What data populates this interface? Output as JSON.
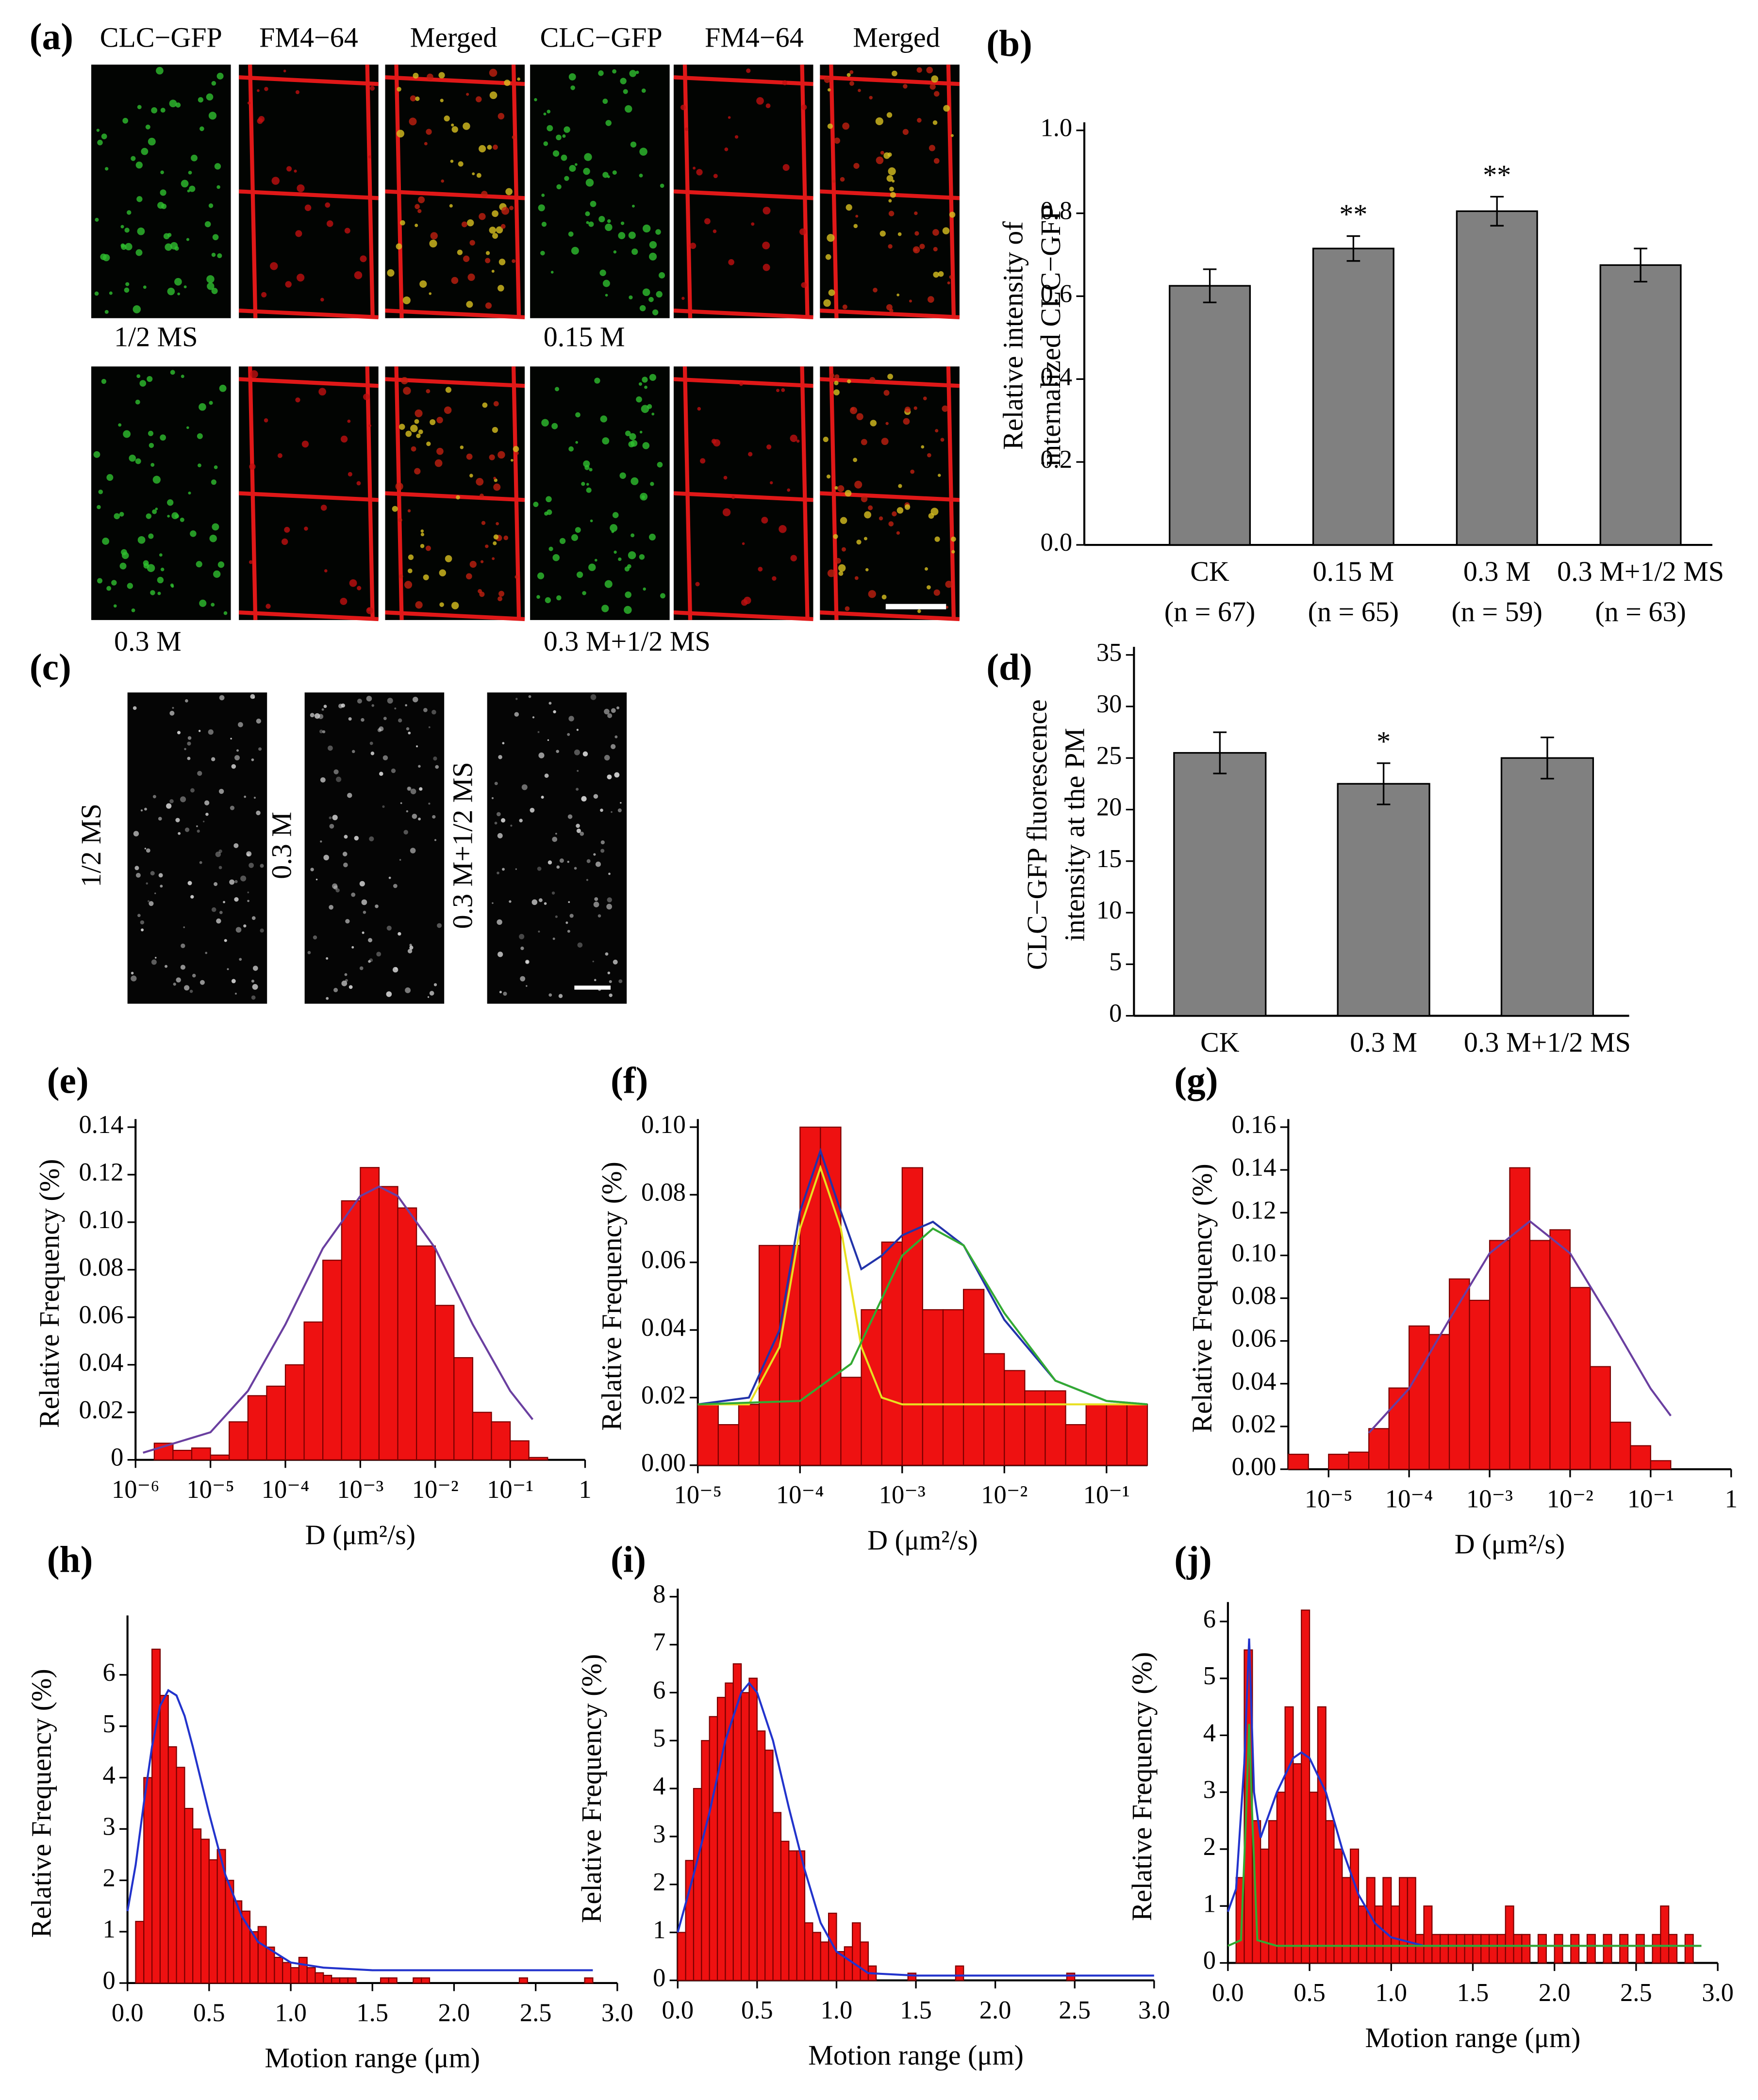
{
  "images": {
    "a": {
      "label": "(a)",
      "headers": [
        "CLC−GFP",
        "FM4−64",
        "Merged",
        "CLC−GFP",
        "FM4−64",
        "Merged"
      ],
      "captions": [
        "1/2 MS",
        "0.15 M",
        "0.3 M",
        "0.3 M+1/2 MS"
      ]
    },
    "c": {
      "label": "(c)",
      "captions": [
        "1/2 MS",
        "0.3 M",
        "0.3 M+1/2 MS"
      ]
    }
  },
  "chart_data": [
    {
      "type": "bar",
      "label": "(b)",
      "ylabel": [
        "Relative intensity of",
        "internalized CLC−GFP"
      ],
      "categories": [
        "CK",
        "0.15 M",
        "0.3 M",
        "0.3 M+1/2 MS"
      ],
      "category_notes": [
        "(n = 67)",
        "(n = 65)",
        "(n = 59)",
        "(n = 63)"
      ],
      "values": [
        0.625,
        0.715,
        0.805,
        0.675
      ],
      "errors": [
        0.04,
        0.03,
        0.035,
        0.04
      ],
      "significance": [
        null,
        "**",
        "**",
        null
      ],
      "color": "#808080",
      "ylim": [
        0,
        1.0
      ],
      "yticks": [
        {
          "value": 0,
          "label": "0.0"
        },
        0.2,
        0.4,
        0.6,
        0.8,
        {
          "value": 1,
          "label": "1.0"
        }
      ]
    },
    {
      "type": "bar",
      "label": "(d)",
      "ylabel": [
        "CLC−GFP fluorescence",
        "intensity at the PM"
      ],
      "categories": [
        "CK",
        "0.3 M",
        "0.3 M+1/2 MS"
      ],
      "values": [
        25.5,
        22.5,
        25
      ],
      "errors": [
        2,
        2,
        2
      ],
      "significance": [
        null,
        "*",
        null
      ],
      "color": "#808080",
      "ylim": [
        0,
        35
      ],
      "yticks": [
        0,
        5,
        10,
        15,
        20,
        25,
        30,
        35
      ]
    },
    {
      "type": "histogram",
      "label": "(e)",
      "xlabel": "D (μm²/s)",
      "ylabel": "Relative Frequency (%)",
      "xscale": "log",
      "bins": [
        1.778e-06,
        3.162e-06,
        5.623e-06,
        1e-05,
        1.778e-05,
        3.162e-05,
        5.623e-05,
        0.0001,
        0.0001778,
        0.0003162,
        0.0005623,
        0.001,
        0.001778,
        0.003162,
        0.005623,
        0.01,
        0.01778,
        0.03162,
        0.05623,
        0.1,
        0.1778,
        0.3162
      ],
      "values": [
        0.007,
        0.004,
        0.005,
        0.002,
        0.016,
        0.027,
        0.031,
        0.04,
        0.058,
        0.084,
        0.109,
        0.123,
        0.115,
        0.106,
        0.09,
        0.065,
        0.043,
        0.02,
        0.016,
        0.008,
        0.001
      ],
      "color": "#ee1111",
      "edgecolor": "#7a0000",
      "fits": [
        {
          "color": "#6a3fa0",
          "x": [
            1.259e-06,
            1e-05,
            3.162e-05,
            0.0001,
            0.0003162,
            0.001,
            0.001778,
            0.003162,
            0.01,
            0.03162,
            0.1,
            0.1995
          ],
          "values": [
            0.003,
            0.0116,
            0.029,
            0.057,
            0.089,
            0.111,
            0.115,
            0.111,
            0.089,
            0.057,
            0.029,
            0.017
          ]
        }
      ],
      "xlim": [
        1e-06,
        1
      ],
      "xticks": [
        {
          "value": 1e-06,
          "label": "10⁻⁶"
        },
        {
          "value": 1e-05,
          "label": "10⁻⁵"
        },
        {
          "value": 0.0001,
          "label": "10⁻⁴"
        },
        {
          "value": 0.001,
          "label": "10⁻³"
        },
        {
          "value": 0.01,
          "label": "10⁻²"
        },
        {
          "value": 0.1,
          "label": "10⁻¹"
        },
        1
      ],
      "ylim": [
        0,
        0.14
      ],
      "yticks": [
        0,
        0.02,
        0.04,
        0.06,
        0.08,
        {
          "value": 0.1,
          "label": "0.10"
        },
        0.12,
        0.14
      ]
    },
    {
      "type": "histogram",
      "label": "(f)",
      "xlabel": "D (μm²/s)",
      "ylabel": "Relative Frequency (%)",
      "xscale": "log",
      "bins": [
        1e-05,
        1.585e-05,
        2.512e-05,
        3.981e-05,
        6.31e-05,
        0.0001,
        0.0001585,
        0.0002512,
        0.0003981,
        0.000631,
        0.001,
        0.001585,
        0.002512,
        0.003981,
        0.00631,
        0.01,
        0.01585,
        0.02512,
        0.03981,
        0.0631,
        0.1,
        0.1585,
        0.2512
      ],
      "values": [
        0.018,
        0.012,
        0.018,
        0.065,
        0.065,
        0.1,
        0.1,
        0.026,
        0.046,
        0.066,
        0.088,
        0.046,
        0.046,
        0.052,
        0.033,
        0.028,
        0.022,
        0.022,
        0.012,
        0.018,
        0.018,
        0.018
      ],
      "color": "#ee1111",
      "edgecolor": "#7a0000",
      "fits": [
        {
          "color": "#2233aa",
          "x": [
            1e-05,
            3.162e-05,
            6.31e-05,
            0.0001,
            0.0001585,
            0.0002512,
            0.0003981,
            0.000631,
            0.001,
            0.002,
            0.004,
            0.01,
            0.03162,
            0.1,
            0.2512
          ],
          "values": [
            0.018,
            0.02,
            0.04,
            0.075,
            0.093,
            0.075,
            0.058,
            0.062,
            0.068,
            0.072,
            0.065,
            0.043,
            0.025,
            0.019,
            0.018
          ]
        },
        {
          "color": "#e8e020",
          "x": [
            1e-05,
            3.162e-05,
            6.31e-05,
            0.0001,
            0.0001585,
            0.0002512,
            0.0003981,
            0.000631,
            0.001,
            0.2512
          ],
          "values": [
            0.018,
            0.018,
            0.035,
            0.07,
            0.088,
            0.07,
            0.035,
            0.02,
            0.018,
            0.018
          ]
        },
        {
          "color": "#33aa33",
          "x": [
            1e-05,
            0.0001,
            0.0003162,
            0.001,
            0.002,
            0.004,
            0.01,
            0.03162,
            0.1,
            0.2512
          ],
          "values": [
            0.018,
            0.019,
            0.03,
            0.062,
            0.07,
            0.065,
            0.045,
            0.025,
            0.019,
            0.018
          ]
        }
      ],
      "xlim": [
        1e-05,
        0.2512
      ],
      "xticks": [
        {
          "value": 1e-05,
          "label": "10⁻⁵"
        },
        {
          "value": 0.0001,
          "label": "10⁻⁴"
        },
        {
          "value": 0.001,
          "label": "10⁻³"
        },
        {
          "value": 0.01,
          "label": "10⁻²"
        },
        {
          "value": 0.1,
          "label": "10⁻¹"
        }
      ],
      "ylim": [
        0,
        0.1
      ],
      "yticks": [
        {
          "value": 0,
          "label": "0.00"
        },
        0.02,
        0.04,
        0.06,
        0.08,
        {
          "value": 0.1,
          "label": "0.10"
        }
      ]
    },
    {
      "type": "histogram",
      "label": "(g)",
      "xlabel": "D (μm²/s)",
      "ylabel": "Relative Frequency (%)",
      "xscale": "log",
      "bins": [
        3.162e-06,
        5.623e-06,
        1e-05,
        1.778e-05,
        3.162e-05,
        5.623e-05,
        0.0001,
        0.0001778,
        0.0003162,
        0.0005623,
        0.001,
        0.001778,
        0.003162,
        0.005623,
        0.01,
        0.01778,
        0.03162,
        0.05623,
        0.1,
        0.1778
      ],
      "values": [
        0.007,
        0,
        0.007,
        0.008,
        0.019,
        0.038,
        0.067,
        0.063,
        0.089,
        0.079,
        0.107,
        0.141,
        0.107,
        0.112,
        0.085,
        0.048,
        0.022,
        0.011,
        0.004
      ],
      "color": "#ee1111",
      "edgecolor": "#7a0000",
      "fits": [
        {
          "color": "#6a3fa0",
          "x": [
            3.162e-05,
            0.0001,
            0.0003162,
            0.001,
            0.003162,
            0.01,
            0.03162,
            0.1,
            0.1778
          ],
          "values": [
            0.017,
            0.0377,
            0.07,
            0.101,
            0.116,
            0.101,
            0.07,
            0.0377,
            0.025
          ]
        }
      ],
      "xlim": [
        3.162e-06,
        1
      ],
      "xticks": [
        {
          "value": 1e-05,
          "label": "10⁻⁵"
        },
        {
          "value": 0.0001,
          "label": "10⁻⁴"
        },
        {
          "value": 0.001,
          "label": "10⁻³"
        },
        {
          "value": 0.01,
          "label": "10⁻²"
        },
        {
          "value": 0.1,
          "label": "10⁻¹"
        },
        1
      ],
      "ylim": [
        0,
        0.16
      ],
      "yticks": [
        {
          "value": 0,
          "label": "0.00"
        },
        0.02,
        0.04,
        0.06,
        0.08,
        {
          "value": 0.1,
          "label": "0.10"
        },
        0.12,
        0.14,
        0.16
      ]
    },
    {
      "type": "histogram",
      "label": "(h)",
      "xlabel": "Motion range (μm)",
      "ylabel": "Relative Frequency (%)",
      "bins": [
        0.05,
        0.1,
        0.15,
        0.2,
        0.25,
        0.3,
        0.35,
        0.4,
        0.45,
        0.5,
        0.55,
        0.6,
        0.65,
        0.7,
        0.75,
        0.8,
        0.85,
        0.9,
        0.95,
        1.0,
        1.05,
        1.1,
        1.15,
        1.2,
        1.25,
        1.3,
        1.35,
        1.4,
        1.45,
        1.5,
        1.55,
        1.6,
        1.65,
        1.7,
        1.75,
        1.8,
        1.85,
        1.9,
        1.95,
        2.0,
        2.05,
        2.1,
        2.15,
        2.2,
        2.25,
        2.3,
        2.35,
        2.4,
        2.45,
        2.5,
        2.55,
        2.6,
        2.65,
        2.7,
        2.75,
        2.8,
        2.85
      ],
      "values": [
        1.2,
        4.0,
        6.5,
        5.6,
        4.6,
        4.2,
        3.4,
        3.0,
        2.8,
        2.4,
        2.6,
        2.0,
        1.6,
        1.4,
        1.0,
        1.1,
        0.7,
        0.5,
        0.4,
        0.3,
        0.5,
        0.3,
        0.2,
        0.15,
        0.1,
        0.1,
        0.1,
        0,
        0,
        0,
        0.1,
        0.1,
        0,
        0,
        0.1,
        0.1,
        0,
        0,
        0,
        0,
        0,
        0,
        0,
        0,
        0,
        0,
        0,
        0.1,
        0,
        0,
        0,
        0,
        0,
        0,
        0,
        0.1
      ],
      "color": "#ee1111",
      "edgecolor": "#7a0000",
      "fits": [
        {
          "color": "#2233cc",
          "x": [
            0.0,
            0.05,
            0.1,
            0.15,
            0.2,
            0.25,
            0.3,
            0.35,
            0.4,
            0.5,
            0.6,
            0.7,
            0.8,
            1.0,
            1.2,
            1.5,
            2.0,
            2.85
          ],
          "values": [
            1.4,
            2.3,
            3.5,
            4.6,
            5.4,
            5.7,
            5.6,
            5.2,
            4.6,
            3.3,
            2.1,
            1.3,
            0.8,
            0.4,
            0.3,
            0.25,
            0.25,
            0.25
          ]
        }
      ],
      "xlim": [
        0,
        3
      ],
      "xticks": [
        {
          "value": 0,
          "label": "0.0"
        },
        0.5,
        {
          "value": 1,
          "label": "1.0"
        },
        1.5,
        {
          "value": 2,
          "label": "2.0"
        },
        2.5,
        {
          "value": 3,
          "label": "3.0"
        }
      ],
      "ylim": [
        0,
        7
      ],
      "yticks": [
        0,
        1,
        2,
        3,
        4,
        5,
        6
      ]
    },
    {
      "type": "histogram",
      "label": "(i)",
      "xlabel": "Motion range (μm)",
      "ylabel": "Relative Frequency (%)",
      "bins": [
        0.0,
        0.05,
        0.1,
        0.15,
        0.2,
        0.25,
        0.3,
        0.35,
        0.4,
        0.45,
        0.5,
        0.55,
        0.6,
        0.65,
        0.7,
        0.75,
        0.8,
        0.85,
        0.9,
        0.95,
        1.0,
        1.05,
        1.1,
        1.15,
        1.2,
        1.25,
        1.3,
        1.35,
        1.4,
        1.45,
        1.5,
        1.55,
        1.6,
        1.65,
        1.7,
        1.75,
        1.8,
        1.85,
        1.9,
        1.95,
        2.0,
        2.05,
        2.1,
        2.15,
        2.2,
        2.25,
        2.3,
        2.35,
        2.4,
        2.45,
        2.5
      ],
      "values": [
        1.0,
        2.5,
        4.0,
        5.0,
        5.5,
        5.9,
        6.2,
        6.6,
        6.0,
        6.3,
        5.2,
        4.8,
        3.5,
        2.9,
        2.7,
        2.7,
        1.2,
        1.0,
        0.8,
        1.4,
        0.6,
        0.7,
        1.2,
        0.8,
        0.3,
        0,
        0,
        0,
        0,
        0.15,
        0,
        0,
        0,
        0,
        0,
        0.3,
        0,
        0,
        0,
        0,
        0,
        0,
        0,
        0,
        0,
        0,
        0,
        0,
        0,
        0.15
      ],
      "color": "#ee1111",
      "edgecolor": "#7a0000",
      "fits": [
        {
          "color": "#2233cc",
          "x": [
            0.0,
            0.1,
            0.2,
            0.3,
            0.4,
            0.45,
            0.5,
            0.6,
            0.7,
            0.8,
            0.9,
            1.0,
            1.2,
            1.5,
            3.0
          ],
          "values": [
            1.0,
            2.2,
            3.5,
            5.0,
            6.0,
            6.2,
            6.0,
            5.0,
            3.6,
            2.3,
            1.2,
            0.6,
            0.15,
            0.1,
            0.1
          ]
        }
      ],
      "xlim": [
        0,
        3
      ],
      "xticks": [
        {
          "value": 0,
          "label": "0.0"
        },
        0.5,
        {
          "value": 1,
          "label": "1.0"
        },
        1.5,
        {
          "value": 2,
          "label": "2.0"
        },
        2.5,
        {
          "value": 3,
          "label": "3.0"
        }
      ],
      "ylim": [
        0,
        8
      ],
      "yticks": [
        0,
        1,
        2,
        3,
        4,
        5,
        6,
        7,
        8
      ]
    },
    {
      "type": "histogram",
      "label": "(j)",
      "xlabel": "Motion range (μm)",
      "ylabel": "Relative Frequency (%)",
      "bins": [
        0.05,
        0.1,
        0.15,
        0.2,
        0.25,
        0.3,
        0.35,
        0.4,
        0.45,
        0.5,
        0.55,
        0.6,
        0.65,
        0.7,
        0.75,
        0.8,
        0.85,
        0.9,
        0.95,
        1.0,
        1.05,
        1.1,
        1.15,
        1.2,
        1.25,
        1.3,
        1.35,
        1.4,
        1.45,
        1.5,
        1.55,
        1.6,
        1.65,
        1.7,
        1.75,
        1.8,
        1.85,
        1.9,
        1.95,
        2.0,
        2.05,
        2.1,
        2.15,
        2.2,
        2.25,
        2.3,
        2.35,
        2.4,
        2.45,
        2.5,
        2.55,
        2.6,
        2.65,
        2.7,
        2.75,
        2.8,
        2.85,
        2.9
      ],
      "values": [
        1.5,
        5.5,
        2.5,
        2.0,
        2.5,
        3.0,
        4.5,
        3.5,
        6.2,
        3.0,
        4.5,
        2.5,
        2.0,
        1.5,
        2.0,
        1.0,
        1.5,
        1.0,
        1.5,
        1.0,
        1.5,
        1.5,
        0.5,
        1.0,
        0.5,
        0.5,
        0.5,
        0.5,
        0.5,
        0.5,
        0.5,
        0.5,
        0.5,
        1.0,
        0.5,
        0.5,
        0,
        0.5,
        0,
        0.5,
        0,
        0.5,
        0,
        0.5,
        0,
        0.5,
        0,
        0.5,
        0,
        0.5,
        0,
        0.5,
        1.0,
        0.5,
        0,
        0.5,
        0
      ],
      "color": "#ee1111",
      "edgecolor": "#7a0000",
      "fits": [
        {
          "color": "#2233cc",
          "x": [
            0.0,
            0.05,
            0.1,
            0.13,
            0.16,
            0.2,
            0.3,
            0.4,
            0.45,
            0.5,
            0.6,
            0.7,
            0.8,
            0.9,
            1.0,
            1.2,
            1.5,
            2.9
          ],
          "values": [
            0.9,
            1.3,
            3.5,
            5.7,
            3.0,
            2.2,
            3.0,
            3.6,
            3.7,
            3.6,
            3.0,
            2.0,
            1.2,
            0.7,
            0.45,
            0.3,
            0.3,
            0.3
          ]
        },
        {
          "color": "#33aa33",
          "x": [
            0.0,
            0.08,
            0.11,
            0.13,
            0.15,
            0.18,
            0.3,
            2.9
          ],
          "values": [
            0.3,
            0.4,
            2.5,
            4.2,
            2.5,
            0.4,
            0.3,
            0.3
          ]
        }
      ],
      "xlim": [
        0,
        3
      ],
      "xticks": [
        {
          "value": 0,
          "label": "0.0"
        },
        0.5,
        {
          "value": 1,
          "label": "1.0"
        },
        1.5,
        {
          "value": 2,
          "label": "2.0"
        },
        2.5,
        {
          "value": 3,
          "label": "3.0"
        }
      ],
      "ylim": [
        0,
        6.2
      ],
      "yticks": [
        0,
        1,
        2,
        3,
        4,
        5,
        6
      ]
    }
  ]
}
